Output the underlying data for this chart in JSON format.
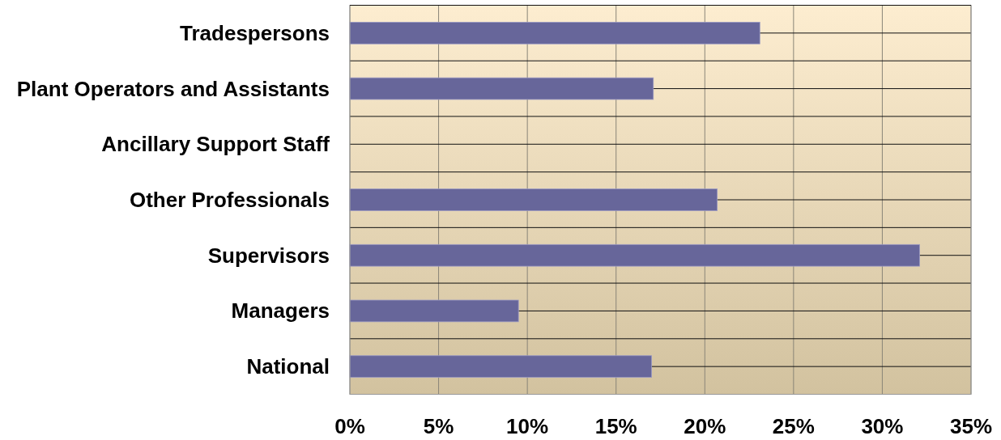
{
  "chart_data": {
    "type": "bar",
    "orientation": "horizontal",
    "categories": [
      "Tradespersons",
      "Plant Operators and Assistants",
      "Ancillary Support Staff",
      "Other Professionals",
      "Supervisors",
      "Managers",
      "National"
    ],
    "values": [
      23.1,
      17.1,
      0,
      20.7,
      32.1,
      9.5,
      17.0
    ],
    "color": "#67669a",
    "xlim": [
      0,
      35
    ],
    "xticks": [
      {
        "value": 0,
        "label": "0%"
      },
      {
        "value": 5,
        "label": "5%"
      },
      {
        "value": 10,
        "label": "10%"
      },
      {
        "value": 15,
        "label": "15%"
      },
      {
        "value": 20,
        "label": "20%"
      },
      {
        "value": 25,
        "label": "25%"
      },
      {
        "value": 30,
        "label": "30%"
      },
      {
        "value": 35,
        "label": "35%"
      }
    ],
    "grid": true
  }
}
